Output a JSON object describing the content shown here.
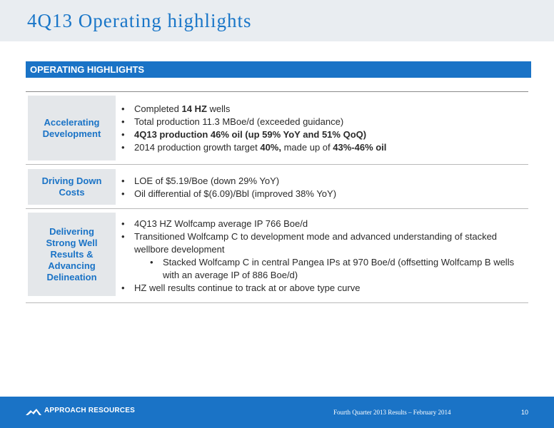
{
  "page": {
    "title": "4Q13 Operating highlights"
  },
  "section": {
    "heading": "OPERATING HIGHLIGHTS"
  },
  "rows": [
    {
      "label": [
        "Accelerating",
        "Development"
      ],
      "bullets": [
        {
          "parts": [
            {
              "text": "Completed "
            },
            {
              "text": "14 HZ",
              "bold": true
            },
            {
              "text": " wells"
            }
          ]
        },
        {
          "parts": [
            {
              "text": "Total production 11.3 MBoe/d (exceeded guidance)"
            }
          ]
        },
        {
          "parts": [
            {
              "text": "4Q13 production 46% oil (up 59% YoY and 51% QoQ)",
              "bold": true
            }
          ]
        },
        {
          "parts": [
            {
              "text": "2014 production growth target "
            },
            {
              "text": "40%,",
              "bold": true
            },
            {
              "text": " made up of "
            },
            {
              "text": "43%-46% oil",
              "bold": true
            }
          ]
        }
      ]
    },
    {
      "label": [
        "Driving Down",
        "Costs"
      ],
      "bullets": [
        {
          "parts": [
            {
              "text": "LOE of $5.19/Boe (down 29% YoY)"
            }
          ]
        },
        {
          "parts": [
            {
              "text": "Oil differential of $(6.09)/Bbl (improved 38% YoY)"
            }
          ]
        }
      ]
    },
    {
      "label": [
        "Delivering",
        "Strong Well",
        "Results &",
        "Advancing",
        "Delineation"
      ],
      "bullets": [
        {
          "parts": [
            {
              "text": "4Q13 HZ Wolfcamp average IP 766 Boe/d"
            }
          ]
        },
        {
          "parts": [
            {
              "text": "Transitioned Wolfcamp C to development mode and advanced understanding of stacked wellbore development"
            }
          ]
        },
        {
          "sub": true,
          "parts": [
            {
              "text": "Stacked Wolfcamp C in central Pangea IPs at 970 Boe/d (offsetting Wolfcamp B wells with an average IP of 886 Boe/d)"
            }
          ]
        },
        {
          "parts": [
            {
              "text": "HZ well results continue to track at or above type curve"
            }
          ]
        }
      ]
    }
  ],
  "footer": {
    "company": "APPROACH RESOURCES",
    "caption": "Fourth Quarter 2013 Results – February 2014",
    "page_number": "10"
  },
  "colors": {
    "accent": "#1a73c6",
    "header_band": "#e9edf1",
    "label_bg": "#e4e7ea",
    "title": "#1976c8"
  },
  "icons": {
    "logo": "mountain-logo-icon"
  }
}
